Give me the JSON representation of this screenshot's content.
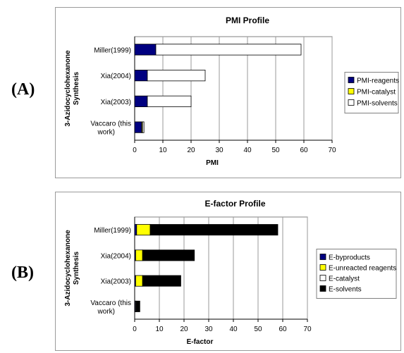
{
  "panel_labels": [
    "(A)",
    "(B)"
  ],
  "chart_data": [
    {
      "type": "bar",
      "orientation": "horizontal",
      "stacked": true,
      "title": "PMI Profile",
      "xlabel": "PMI",
      "ylabel": "3-Azidocyclohexanone Synthesis",
      "categories": [
        "Miller(1999)",
        "Xia(2004)",
        "Xia(2003)",
        "Vaccaro (this work)"
      ],
      "series": [
        {
          "name": "PMI-reagents",
          "color": "#000080",
          "values": [
            7.5,
            4.5,
            4.5,
            2.5
          ]
        },
        {
          "name": "PMI-catalyst",
          "color": "#ffff00",
          "values": [
            0,
            0,
            0,
            0.3
          ]
        },
        {
          "name": "PMI-solvents",
          "color": "#ffffff",
          "values": [
            51.5,
            20.5,
            15.5,
            0.5
          ]
        }
      ],
      "xlim": [
        0,
        70
      ],
      "xticks": [
        0,
        10,
        20,
        30,
        40,
        50,
        60,
        70
      ],
      "grid": true,
      "legend": "right"
    },
    {
      "type": "bar",
      "orientation": "horizontal",
      "stacked": true,
      "title": "E-factor Profile",
      "xlabel": "E-factor",
      "ylabel": "3-Azidocyclohexanone Synthesis",
      "categories": [
        "Miller(1999)",
        "Xia(2004)",
        "Xia(2003)",
        "Vaccaro (this work)"
      ],
      "series": [
        {
          "name": "E-byproducts",
          "color": "#000080",
          "values": [
            0.8,
            0.4,
            0.4,
            0.3
          ]
        },
        {
          "name": "E-unreacted reagents",
          "color": "#ffff00",
          "values": [
            5.5,
            2.8,
            2.8,
            0
          ]
        },
        {
          "name": "E-catalyst",
          "color": "#ffffff",
          "values": [
            0,
            0,
            0,
            0.3
          ]
        },
        {
          "name": "E-solvents",
          "color": "#000000",
          "values": [
            51.7,
            21,
            15.5,
            1.5
          ]
        }
      ],
      "xlim": [
        0,
        70
      ],
      "xticks": [
        0,
        10,
        20,
        30,
        40,
        50,
        60,
        70
      ],
      "grid": true,
      "legend": "right"
    }
  ]
}
